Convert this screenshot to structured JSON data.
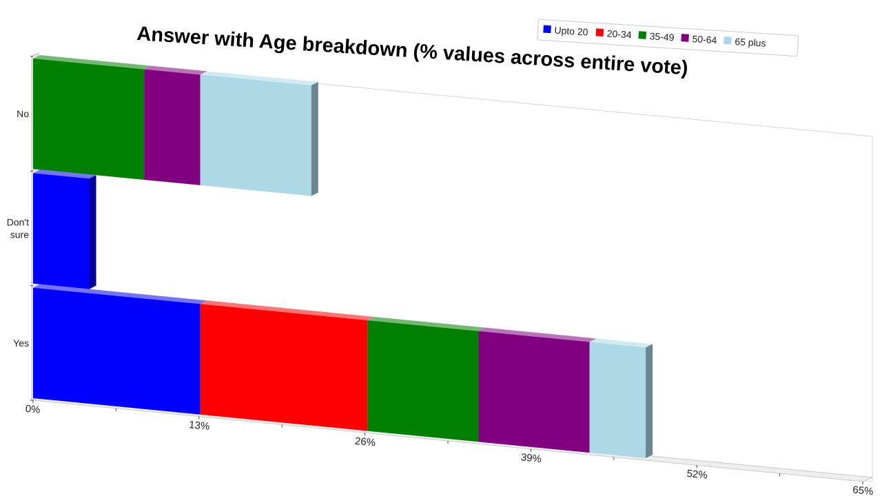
{
  "chart_data": {
    "type": "bar",
    "orientation": "horizontal",
    "stacked": true,
    "style": "3d-perspective",
    "title": "Answer with Age breakdown (% values across entire vote)",
    "xlabel": "",
    "ylabel": "",
    "xlim": [
      0,
      65
    ],
    "x_ticks": [
      "0%",
      "13%",
      "26%",
      "39%",
      "52%",
      "65%"
    ],
    "categories": [
      "No",
      "Don't sure",
      "Yes"
    ],
    "series": [
      {
        "name": "Upto 20",
        "color": "#0000ff",
        "values": [
          0,
          4.4,
          13.1
        ]
      },
      {
        "name": "20-34",
        "color": "#ff0000",
        "values": [
          0,
          0,
          13.1
        ]
      },
      {
        "name": "35-49",
        "color": "#008000",
        "values": [
          8.7,
          0,
          8.7
        ]
      },
      {
        "name": "50-64",
        "color": "#800080",
        "values": [
          4.4,
          0,
          8.7
        ]
      },
      {
        "name": "65 plus",
        "color": "#add8e6",
        "values": [
          8.7,
          0,
          4.4
        ]
      }
    ],
    "legend_position": "top-right",
    "grid": false
  }
}
